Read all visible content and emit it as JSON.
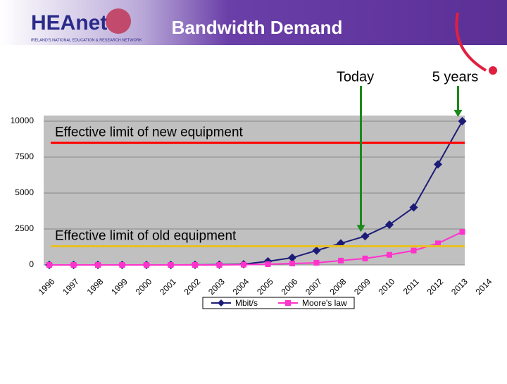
{
  "header": {
    "logo": "HEAnet",
    "logo_tagline": "IRELAND'S NATIONAL EDUCATION & RESEARCH NETWORK",
    "title": "Bandwidth Demand"
  },
  "chart_data": {
    "type": "line",
    "categories": [
      "1996",
      "1997",
      "1998",
      "1999",
      "2000",
      "2001",
      "2002",
      "2003",
      "2004",
      "2005",
      "2006",
      "2007",
      "2008",
      "2009",
      "2010",
      "2011",
      "2012",
      "2013",
      "2014"
    ],
    "series": [
      {
        "name": "Mbit/s",
        "color": "#1c1c78",
        "marker": "diamond",
        "values": [
          0,
          0,
          0,
          0,
          0,
          0,
          5,
          20,
          50,
          250,
          500,
          1000,
          1500,
          2000,
          2800,
          4000,
          7000,
          10000,
          null
        ]
      },
      {
        "name": "Moore's law",
        "color": "#ff33cc",
        "marker": "square",
        "values": [
          0,
          0,
          0,
          0,
          0,
          0,
          0,
          0,
          20,
          50,
          100,
          150,
          300,
          450,
          700,
          1000,
          1500,
          2300,
          null
        ]
      }
    ],
    "ylim": [
      0,
      10000
    ],
    "yticks": [
      0,
      2500,
      5000,
      7500,
      10000
    ],
    "grid": true,
    "limits": [
      {
        "label": "Effective limit of new equipment",
        "value": 8500,
        "color": "#ff0000"
      },
      {
        "label": "Effective limit of old equipment",
        "value": 1300,
        "color": "#e8c020"
      }
    ],
    "annotations": [
      {
        "label": "Today",
        "category": "2009"
      },
      {
        "label": "5 years",
        "category": "2013"
      }
    ]
  }
}
